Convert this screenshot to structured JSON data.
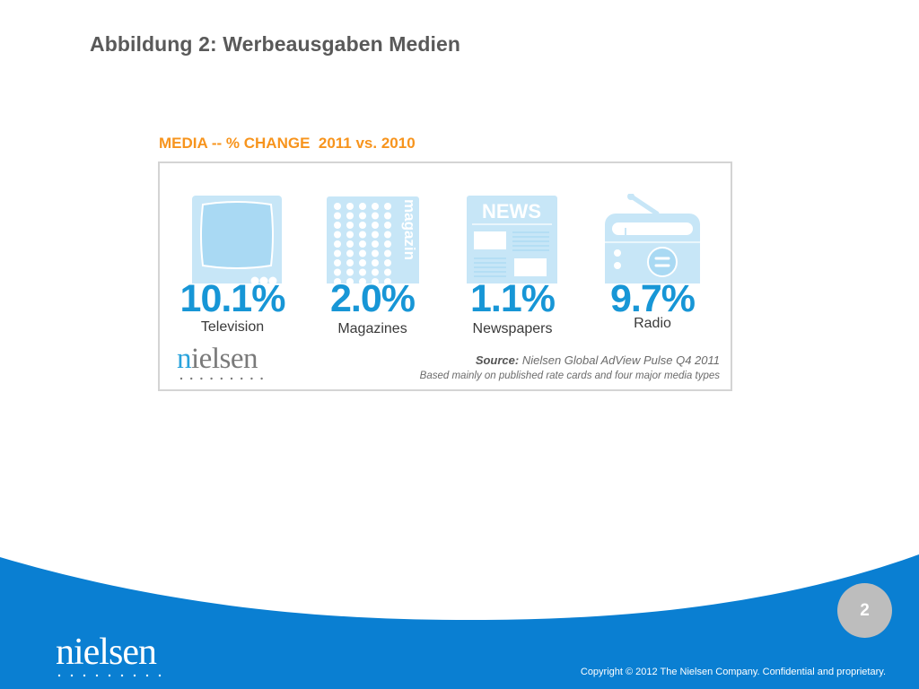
{
  "slide": {
    "title": "Abbildung 2: Werbeausgaben Medien",
    "page_number": "2",
    "copyright": "Copyright © 2012 The Nielsen Company. Confidential and proprietary.",
    "footer_logo": "nielsen",
    "colors": {
      "footer_blue": "#0a7fd2",
      "page_badge": "#bdbdbd"
    }
  },
  "infographic": {
    "title": "MEDIA -- % CHANGE  2011 vs. 2010",
    "colors": {
      "title_orange": "#f7941d",
      "value_blue": "#1796d6",
      "icon_light_blue": "#c7e6f7",
      "icon_mid_blue": "#a9d9f3",
      "border_gray": "#d4d4d4"
    },
    "items": [
      {
        "icon": "television-icon",
        "value": "10.1%",
        "label": "Television"
      },
      {
        "icon": "magazine-icon",
        "value": "2.0%",
        "label": "Magazines",
        "icon_text": "magazin"
      },
      {
        "icon": "newspaper-icon",
        "value": "1.1%",
        "label": "Newspapers",
        "icon_text": "NEWS"
      },
      {
        "icon": "radio-icon",
        "value": "9.7%",
        "label": "Radio"
      }
    ],
    "logo_first_letter": "n",
    "logo_rest": "ielsen",
    "source_label": "Source:",
    "source_text": " Nielsen Global AdView Pulse Q4 2011",
    "basis_text": "Based mainly on published rate cards and four major media types"
  },
  "chart_data": {
    "type": "table",
    "title": "MEDIA -- % CHANGE  2011 vs. 2010",
    "categories": [
      "Television",
      "Magazines",
      "Newspapers",
      "Radio"
    ],
    "values": [
      10.1,
      2.0,
      1.1,
      9.7
    ],
    "unit": "%",
    "source": "Nielsen Global AdView Pulse Q4 2011",
    "note": "Based mainly on published rate cards and four major media types"
  }
}
